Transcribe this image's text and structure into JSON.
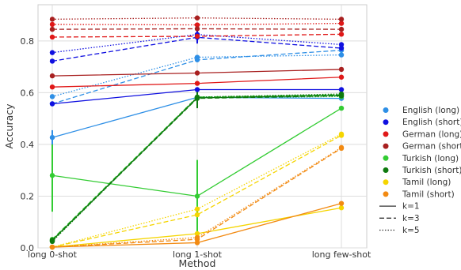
{
  "chart_data": {
    "type": "line",
    "xlabel": "Method",
    "ylabel": "Accuracy",
    "categories": [
      "long 0-shot",
      "long 1-shot",
      "long few-shot"
    ],
    "ylim": [
      0.0,
      0.94
    ],
    "yticks": [
      0.0,
      0.2,
      0.4,
      0.6,
      0.8
    ],
    "ytick_labels": [
      "0.0",
      "0.2",
      "0.4",
      "0.6",
      "0.8"
    ],
    "grid": true,
    "legend_position": "right",
    "colors": {
      "English (long)": "#2e8fe6",
      "English (short)": "#1010e0",
      "German (long)": "#e01818",
      "German (short)": "#a82020",
      "Turkish (long)": "#33cc33",
      "Turkish (short)": "#0f7a0f",
      "Tamil (long)": "#f5d500",
      "Tamil (short)": "#f28a12"
    },
    "linestyles": {
      "k=1": "solid",
      "k=3": "dashed",
      "k=5": "dotted"
    },
    "legend": {
      "series": [
        "English (long)",
        "English (short)",
        "German (long)",
        "German (short)",
        "Turkish (long)",
        "Turkish (short)",
        "Tamil (long)",
        "Tamil (short)"
      ],
      "styles": [
        "k=1",
        "k=3",
        "k=5"
      ]
    },
    "series": [
      {
        "name": "English (long)",
        "k": "k=1",
        "values": [
          0.427,
          0.582,
          0.578
        ]
      },
      {
        "name": "English (long)",
        "k": "k=3",
        "values": [
          0.557,
          0.727,
          0.764
        ]
      },
      {
        "name": "English (long)",
        "k": "k=5",
        "values": [
          0.585,
          0.737,
          0.746
        ]
      },
      {
        "name": "English (short)",
        "k": "k=1",
        "values": [
          0.557,
          0.612,
          0.612
        ]
      },
      {
        "name": "English (short)",
        "k": "k=3",
        "values": [
          0.722,
          0.814,
          0.772
        ]
      },
      {
        "name": "English (short)",
        "k": "k=5",
        "values": [
          0.755,
          0.825,
          0.786
        ]
      },
      {
        "name": "German (long)",
        "k": "k=1",
        "values": [
          0.622,
          0.636,
          0.66
        ]
      },
      {
        "name": "German (long)",
        "k": "k=3",
        "values": [
          0.815,
          0.818,
          0.826
        ]
      },
      {
        "name": "German (long)",
        "k": "k=5",
        "values": [
          0.864,
          0.862,
          0.868
        ]
      },
      {
        "name": "German (short)",
        "k": "k=1",
        "values": [
          0.665,
          0.676,
          0.69
        ]
      },
      {
        "name": "German (short)",
        "k": "k=3",
        "values": [
          0.845,
          0.847,
          0.845
        ]
      },
      {
        "name": "German (short)",
        "k": "k=5",
        "values": [
          0.884,
          0.889,
          0.884
        ]
      },
      {
        "name": "Turkish (long)",
        "k": "k=1",
        "values": [
          0.28,
          0.2,
          0.54
        ]
      },
      {
        "name": "Turkish (long)",
        "k": "k=3",
        "values": [
          0.033,
          0.583,
          0.592
        ]
      },
      {
        "name": "Turkish (long)",
        "k": "k=5",
        "values": [
          0.027,
          0.58,
          0.585
        ]
      },
      {
        "name": "Turkish (short)",
        "k": "k=1",
        "values": [
          0.03,
          0.58,
          0.59
        ]
      },
      {
        "name": "Turkish (short)",
        "k": "k=3",
        "values": [
          0.028,
          0.578,
          0.588
        ]
      },
      {
        "name": "Turkish (short)",
        "k": "k=5",
        "values": [
          0.025,
          0.583,
          0.595
        ]
      },
      {
        "name": "Tamil (long)",
        "k": "k=1",
        "values": [
          0.003,
          0.055,
          0.155
        ]
      },
      {
        "name": "Tamil (long)",
        "k": "k=3",
        "values": [
          0.003,
          0.128,
          0.435
        ]
      },
      {
        "name": "Tamil (long)",
        "k": "k=5",
        "values": [
          0.003,
          0.15,
          0.44
        ]
      },
      {
        "name": "Tamil (short)",
        "k": "k=1",
        "values": [
          0.003,
          0.02,
          0.172
        ]
      },
      {
        "name": "Tamil (short)",
        "k": "k=3",
        "values": [
          0.003,
          0.033,
          0.385
        ]
      },
      {
        "name": "Tamil (short)",
        "k": "k=5",
        "values": [
          0.003,
          0.04,
          0.388
        ]
      }
    ]
  }
}
